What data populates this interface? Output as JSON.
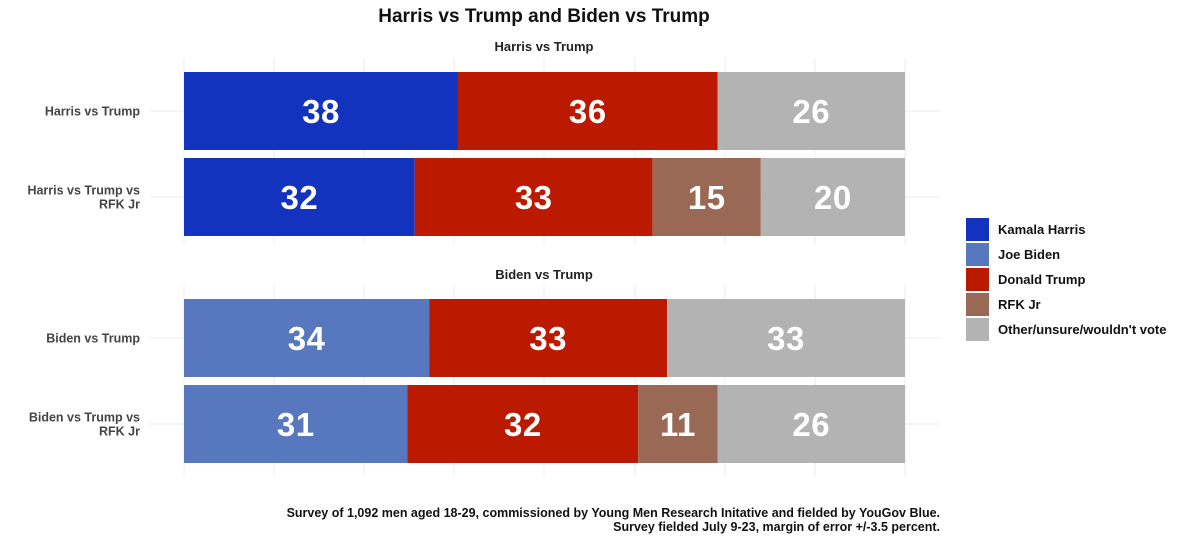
{
  "chart_data": {
    "type": "bar",
    "title": "Harris vs Trump and Biden vs Trump",
    "orientation": "horizontal-stacked",
    "grid": true,
    "legend_position": "right",
    "facets": [
      {
        "title": "Harris vs Trump",
        "rows": [
          {
            "label_lines": [
              "Harris vs Trump"
            ],
            "segments": [
              {
                "series": "Kamala Harris",
                "value": 38
              },
              {
                "series": "Donald Trump",
                "value": 36
              },
              {
                "series": "Other/unsure/wouldn't vote",
                "value": 26
              }
            ]
          },
          {
            "label_lines": [
              "Harris vs Trump vs",
              "RFK Jr"
            ],
            "segments": [
              {
                "series": "Kamala Harris",
                "value": 32
              },
              {
                "series": "Donald Trump",
                "value": 33
              },
              {
                "series": "RFK Jr",
                "value": 15
              },
              {
                "series": "Other/unsure/wouldn't vote",
                "value": 20
              }
            ]
          }
        ]
      },
      {
        "title": "Biden vs Trump",
        "rows": [
          {
            "label_lines": [
              "Biden vs Trump"
            ],
            "segments": [
              {
                "series": "Joe Biden",
                "value": 34
              },
              {
                "series": "Donald Trump",
                "value": 33
              },
              {
                "series": "Other/unsure/wouldn't vote",
                "value": 33
              }
            ]
          },
          {
            "label_lines": [
              "Biden vs Trump vs",
              "RFK Jr"
            ],
            "segments": [
              {
                "series": "Joe Biden",
                "value": 31
              },
              {
                "series": "Donald Trump",
                "value": 32
              },
              {
                "series": "RFK Jr",
                "value": 11
              },
              {
                "series": "Other/unsure/wouldn't vote",
                "value": 26
              }
            ]
          }
        ]
      }
    ],
    "legend": [
      {
        "name": "Kamala Harris",
        "color": "#1333BE"
      },
      {
        "name": "Joe Biden",
        "color": "#5778BF"
      },
      {
        "name": "Donald Trump",
        "color": "#BB1A00"
      },
      {
        "name": "RFK Jr",
        "color": "#9A6955"
      },
      {
        "name": "Other/unsure/wouldn't vote",
        "color": "#B3B3B3"
      }
    ],
    "caption_lines": [
      "Survey of 1,092 men aged 18-29, commissioned by Young Men Research Initative and fielded by YouGov Blue.",
      "Survey fielded July 9-23, margin of error +/-3.5 percent."
    ]
  }
}
